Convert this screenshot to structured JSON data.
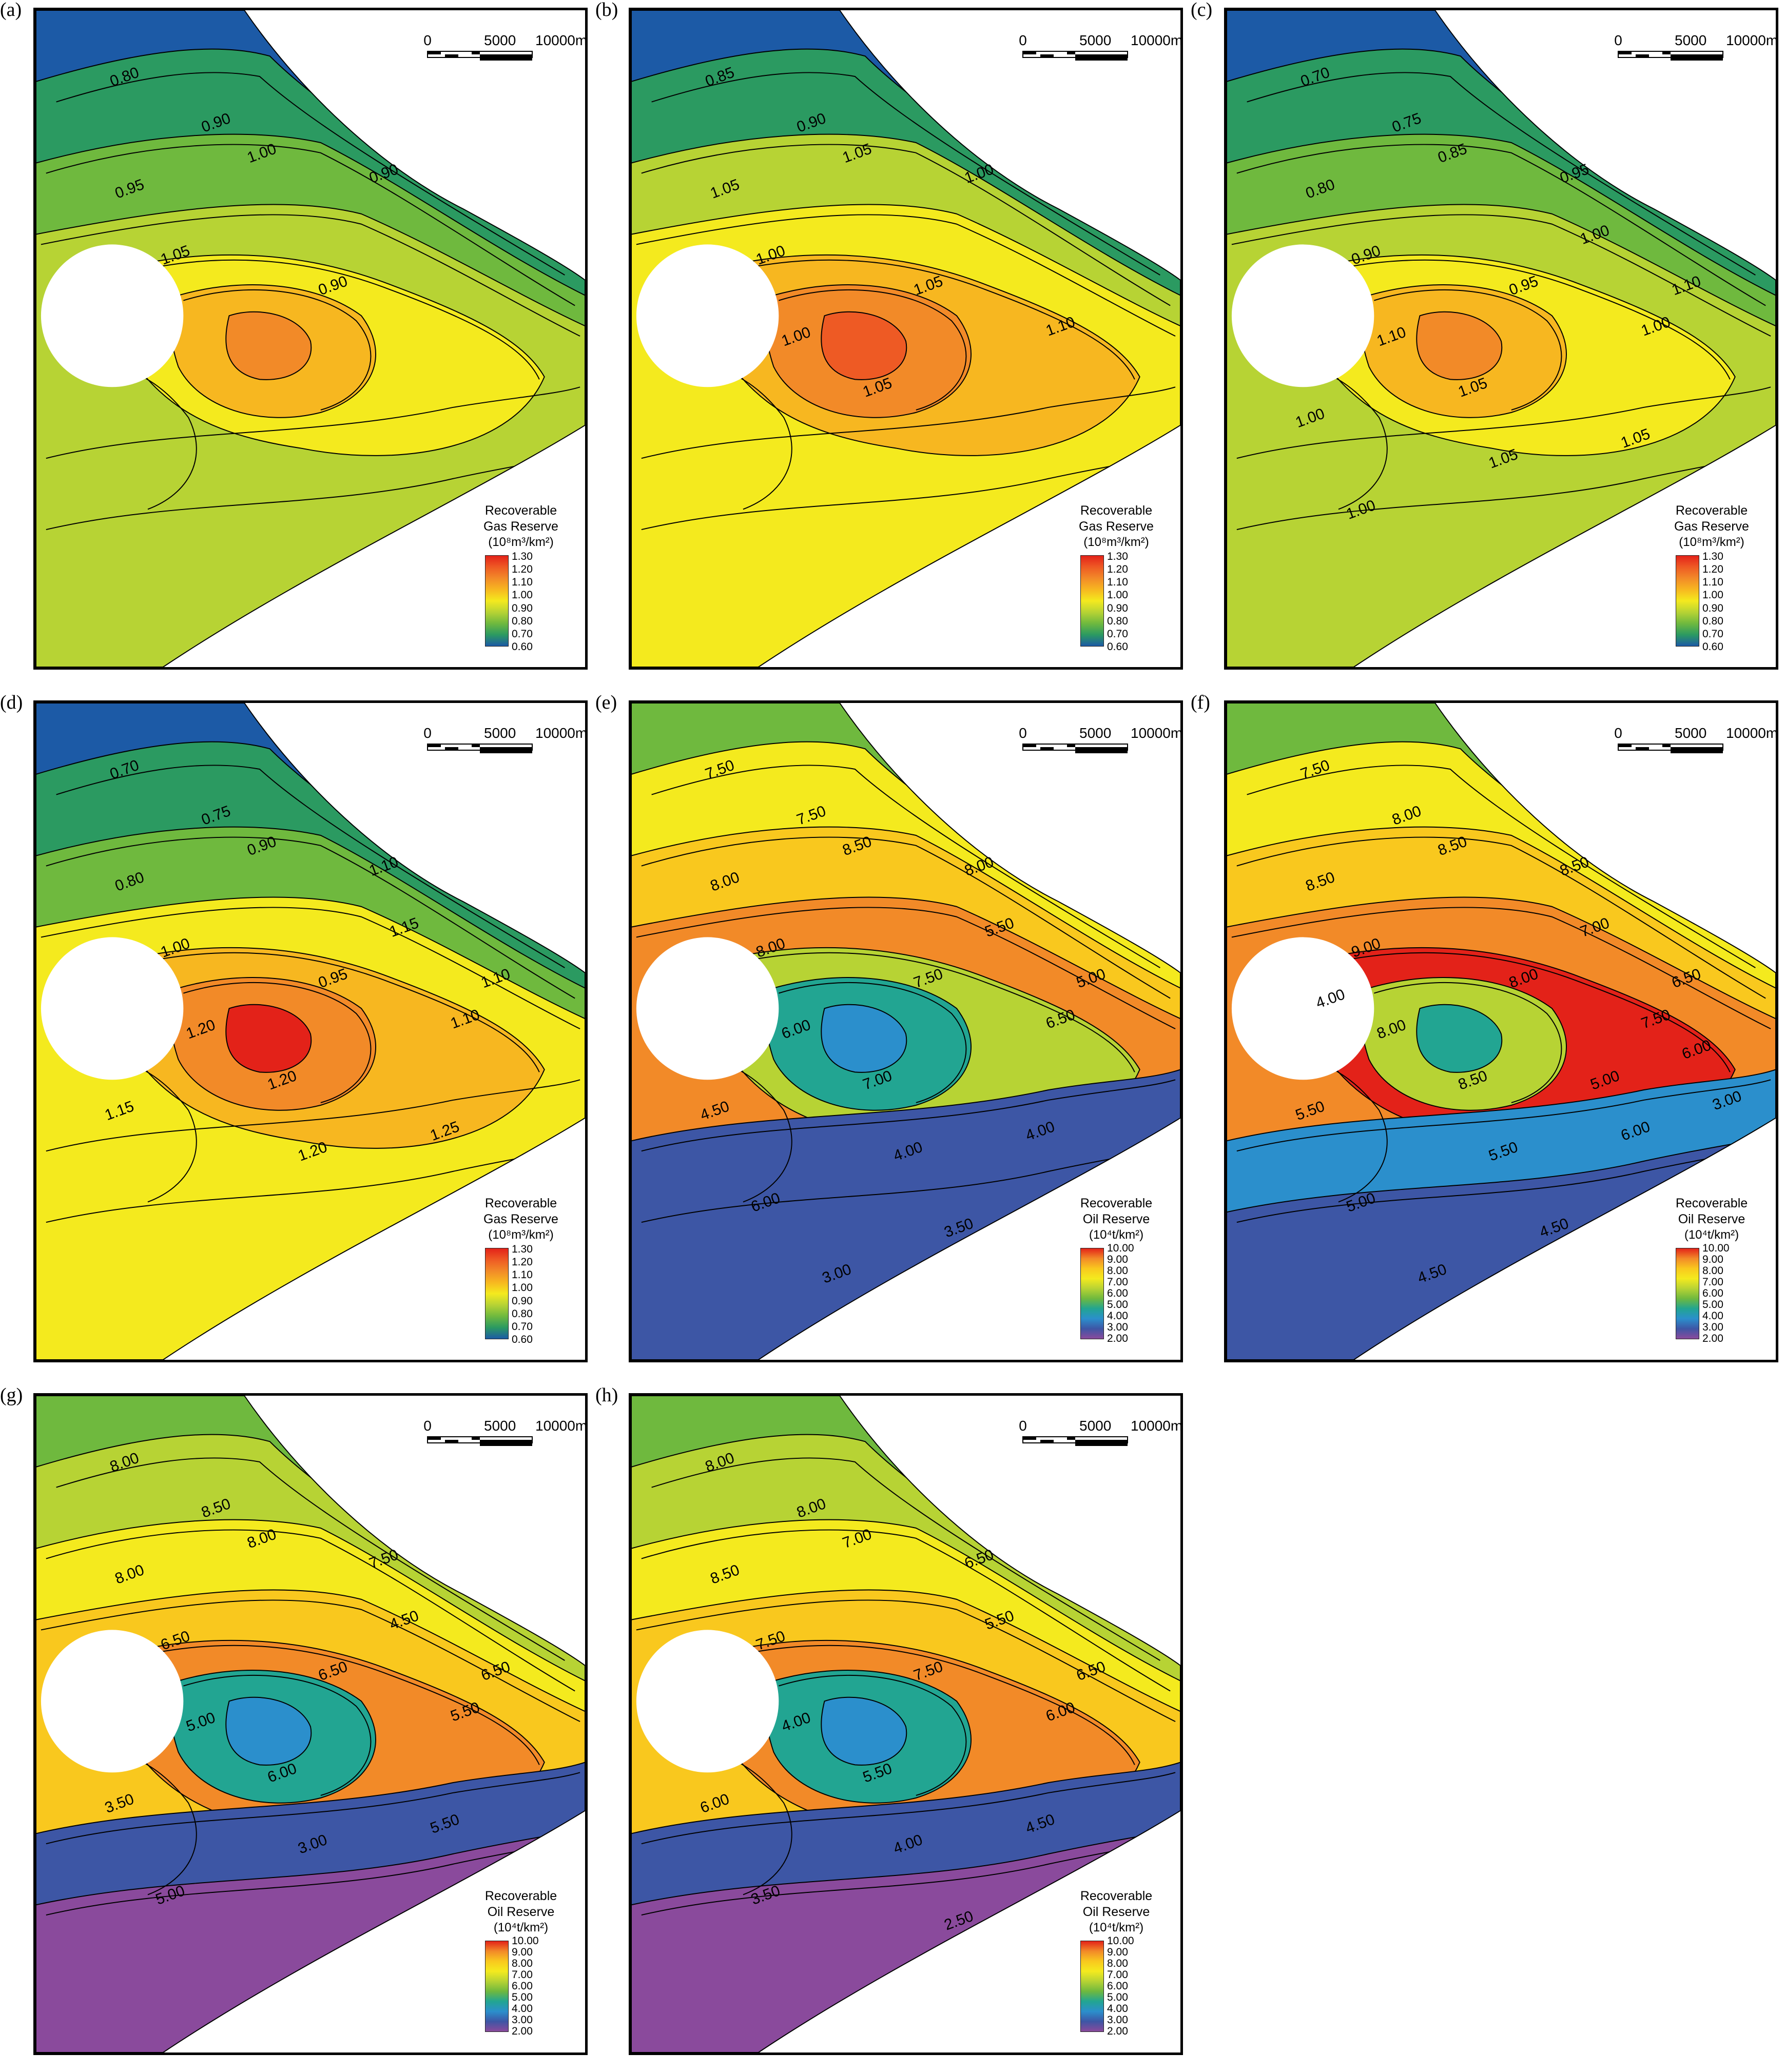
{
  "scale_bar": {
    "ticks": [
      "0",
      "5000",
      "10000m"
    ]
  },
  "legend_gas": {
    "title_lines": [
      "Recoverable",
      "Gas Reserve"
    ],
    "unit": "(10⁸m³/km²)",
    "ticks": [
      "1.30",
      "1.20",
      "1.10",
      "1.00",
      "0.90",
      "0.80",
      "0.70",
      "0.60"
    ]
  },
  "legend_oil": {
    "title_lines": [
      "Recoverable",
      "Oil Reserve"
    ],
    "unit": "(10⁴t/km²)",
    "ticks": [
      "10.00",
      "9.00",
      "8.00",
      "7.00",
      "6.00",
      "5.00",
      "4.00",
      "3.00",
      "2.00"
    ]
  },
  "colors": {
    "gas_scale": [
      "#e32219",
      "#ee5a24",
      "#f28a28",
      "#f7b720",
      "#f4ea1e",
      "#b7d334",
      "#6fb93e",
      "#2b9a61",
      "#1c5aa6"
    ],
    "oil_scale": [
      "#e32219",
      "#f28a28",
      "#f9c81e",
      "#f4ea1e",
      "#b7d334",
      "#6fb93e",
      "#22a592",
      "#2b8fcc",
      "#3d56a5",
      "#8a4a9c"
    ]
  },
  "panels": [
    {
      "letter": "(a)",
      "legend": "gas",
      "bands": [
        "#1c5aa6",
        "#2b9a61",
        "#6fb93e",
        "#b7d334",
        "#f4ea1e",
        "#f7b720",
        "#f28a28"
      ],
      "contour_labels": [
        "0.80",
        "0.90",
        "0.95",
        "1.00",
        "1.05",
        "0.90",
        "0.90"
      ]
    },
    {
      "letter": "(b)",
      "legend": "gas",
      "bands": [
        "#1c5aa6",
        "#2b9a61",
        "#b7d334",
        "#f4ea1e",
        "#f7b720",
        "#f28a28",
        "#ee5a24"
      ],
      "contour_labels": [
        "0.85",
        "0.90",
        "1.05",
        "1.05",
        "1.00",
        "1.00",
        "1.05",
        "1.10",
        "1.05",
        "1.00"
      ]
    },
    {
      "letter": "(c)",
      "legend": "gas",
      "bands": [
        "#1c5aa6",
        "#2b9a61",
        "#6fb93e",
        "#b7d334",
        "#f4ea1e",
        "#f7b720",
        "#f28a28"
      ],
      "contour_labels": [
        "0.70",
        "0.75",
        "0.80",
        "0.85",
        "0.90",
        "0.95",
        "0.95",
        "1.00",
        "1.05",
        "1.10",
        "1.00",
        "1.10",
        "1.00",
        "1.05",
        "1.05",
        "1.00"
      ]
    },
    {
      "letter": "(d)",
      "legend": "gas",
      "bands": [
        "#1c5aa6",
        "#2b9a61",
        "#6fb93e",
        "#f4ea1e",
        "#f7b720",
        "#f28a28",
        "#e32219"
      ],
      "contour_labels": [
        "0.70",
        "0.75",
        "0.80",
        "0.90",
        "1.00",
        "1.10",
        "0.95",
        "1.10",
        "1.20",
        "1.20",
        "1.15",
        "1.10",
        "1.15",
        "1.20",
        "1.25"
      ]
    },
    {
      "letter": "(e)",
      "legend": "oil",
      "bands": [
        "#6fb93e",
        "#f4ea1e",
        "#f9c81e",
        "#f28a28",
        "#b7d334",
        "#22a592",
        "#2b8fcc",
        "#3d56a5"
      ],
      "contour_labels": [
        "7.50",
        "7.50",
        "8.00",
        "8.50",
        "8.00",
        "8.00",
        "7.50",
        "6.50",
        "7.00",
        "6.00",
        "5.50",
        "5.00",
        "4.50",
        "4.00",
        "4.00",
        "6.00",
        "3.50",
        "3.00"
      ]
    },
    {
      "letter": "(f)",
      "legend": "oil",
      "bands": [
        "#6fb93e",
        "#f4ea1e",
        "#f9c81e",
        "#f28a28",
        "#e32219",
        "#b7d334",
        "#22a592",
        "#2b8fcc",
        "#3d56a5"
      ],
      "contour_labels": [
        "7.50",
        "8.00",
        "8.50",
        "8.50",
        "9.00",
        "8.50",
        "8.00",
        "7.50",
        "8.50",
        "8.00",
        "7.00",
        "6.50",
        "5.50",
        "5.50",
        "6.00",
        "5.00",
        "4.50",
        "4.50",
        "6.00",
        "4.00",
        "5.00",
        "3.00"
      ]
    },
    {
      "letter": "(g)",
      "legend": "oil",
      "bands": [
        "#6fb93e",
        "#b7d334",
        "#f4ea1e",
        "#f9c81e",
        "#f28a28",
        "#22a592",
        "#2b8fcc",
        "#3d56a5",
        "#8a4a9c"
      ],
      "contour_labels": [
        "8.00",
        "8.50",
        "8.00",
        "8.00",
        "6.50",
        "7.50",
        "6.50",
        "5.50",
        "6.00",
        "5.00",
        "4.50",
        "6.50",
        "3.50",
        "3.00",
        "5.50",
        "5.00"
      ]
    },
    {
      "letter": "(h)",
      "legend": "oil",
      "bands": [
        "#6fb93e",
        "#b7d334",
        "#f4ea1e",
        "#f9c81e",
        "#f28a28",
        "#22a592",
        "#2b8fcc",
        "#3d56a5",
        "#8a4a9c"
      ],
      "contour_labels": [
        "8.00",
        "8.00",
        "8.50",
        "7.00",
        "7.50",
        "6.50",
        "7.50",
        "6.00",
        "5.50",
        "4.00",
        "5.50",
        "6.50",
        "6.00",
        "4.00",
        "4.50",
        "3.50",
        "2.50"
      ]
    }
  ]
}
